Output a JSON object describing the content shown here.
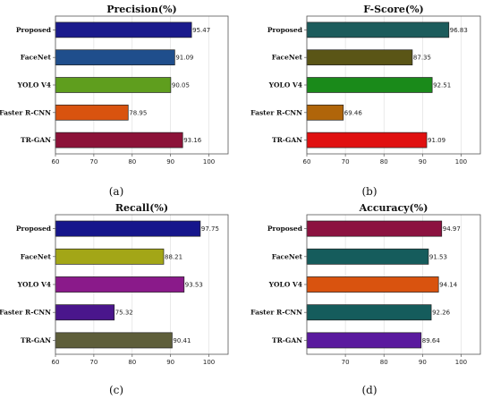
{
  "panel_labels": [
    "(a)",
    "(b)",
    "(c)",
    "(d)"
  ],
  "chart_data": [
    {
      "type": "bar",
      "orientation": "horizontal",
      "title": "Precision(%)",
      "categories": [
        "Proposed",
        "FaceNet",
        "YOLO V4",
        "Faster R-CNN",
        "TR-GAN"
      ],
      "values": [
        95.47,
        91.09,
        90.05,
        78.95,
        93.16
      ],
      "value_labels": [
        "95.47",
        "91.09",
        "90.05",
        "78.95",
        "93.16"
      ],
      "colors": [
        "#1a1a8c",
        "#1f4e8c",
        "#5f9e1e",
        "#d9530f",
        "#8c1238"
      ],
      "xlim": [
        60,
        105
      ],
      "xticks": [
        "60",
        "70",
        "80",
        "90",
        "100"
      ],
      "grid": true
    },
    {
      "type": "bar",
      "orientation": "horizontal",
      "title": "F-Score(%)",
      "categories": [
        "Proposed",
        "FaceNet",
        "YOLO V4",
        "Faster R-CNN",
        "TR-GAN"
      ],
      "values": [
        96.83,
        87.35,
        92.51,
        69.46,
        91.09
      ],
      "value_labels": [
        "96.83",
        "87.35",
        "92.51",
        "69.46",
        "91.09"
      ],
      "colors": [
        "#1c5c5c",
        "#5a5516",
        "#1a8a1a",
        "#b0650a",
        "#e01010"
      ],
      "xlim": [
        60,
        105
      ],
      "xticks": [
        "60",
        "70",
        "80",
        "90",
        "100"
      ],
      "grid": true
    },
    {
      "type": "bar",
      "orientation": "horizontal",
      "title": "Recall(%)",
      "categories": [
        "Proposed",
        "FaceNet",
        "YOLO V4",
        "Faster R-CNN",
        "TR-GAN"
      ],
      "values": [
        97.75,
        88.21,
        93.53,
        75.32,
        90.41
      ],
      "value_labels": [
        "97.75",
        "88.21",
        "93.53",
        "75.32",
        "90.41"
      ],
      "colors": [
        "#16168c",
        "#a3a617",
        "#8a1a8a",
        "#4a168c",
        "#5e5e3a"
      ],
      "xlim": [
        60,
        105
      ],
      "xticks": [
        "60",
        "70",
        "80",
        "90",
        "100"
      ],
      "grid": true
    },
    {
      "type": "bar",
      "orientation": "horizontal",
      "title": "Accuracy(%)",
      "categories": [
        "Proposed",
        "FaceNet",
        "YOLO V4",
        "Faster R-CNN",
        "TR-GAN"
      ],
      "values": [
        94.97,
        91.53,
        94.14,
        92.26,
        89.64
      ],
      "value_labels": [
        "94.97",
        "91.53",
        "94.14",
        "92.26",
        "89.64"
      ],
      "colors": [
        "#8c1240",
        "#155c5c",
        "#d9530f",
        "#155c5c",
        "#5a1a9e"
      ],
      "xlim": [
        60,
        105
      ],
      "xticks": [
        "70",
        "80",
        "90",
        "100"
      ],
      "xtick_values": [
        70,
        80,
        90,
        100
      ],
      "grid": true
    }
  ]
}
